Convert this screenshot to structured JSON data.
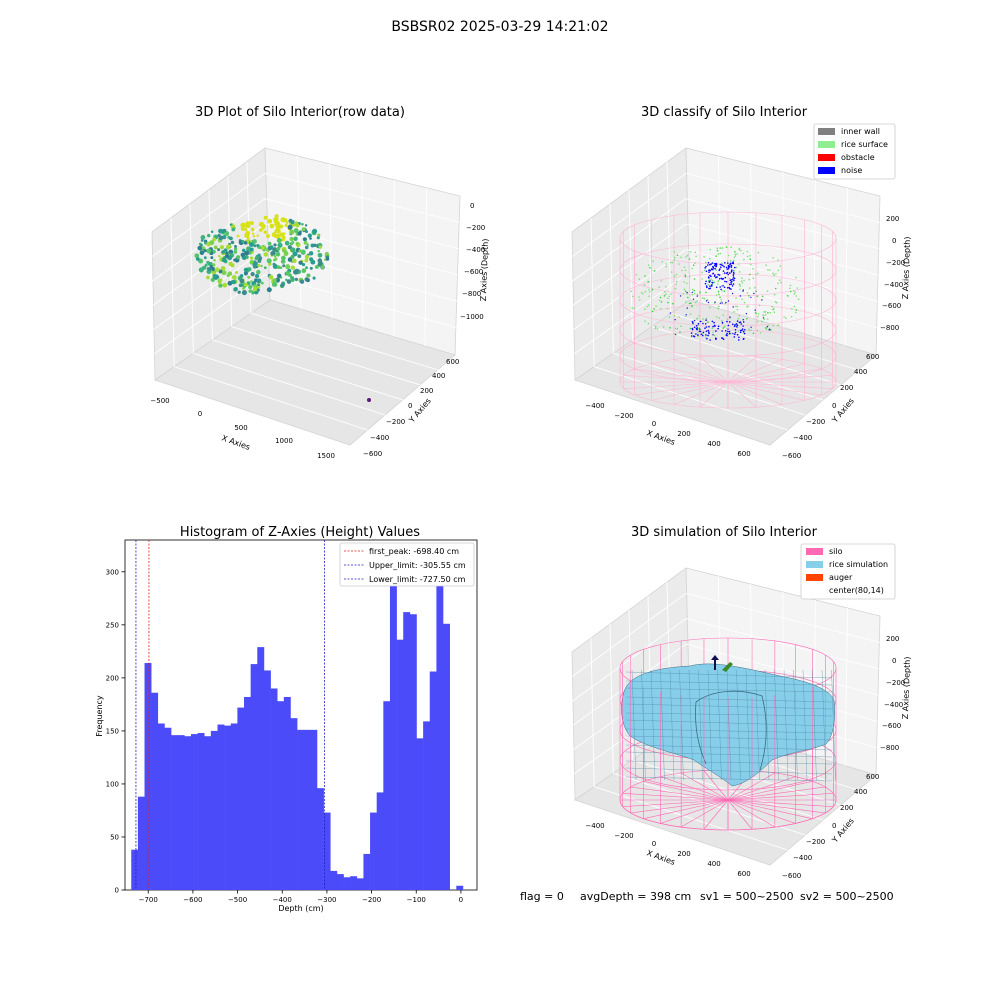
{
  "figure_title": "BSBSR02 2025-03-29 14:21:02",
  "colors": {
    "hist_bar": "#4b4bfa",
    "first_peak": "#e02020",
    "limit": "#2020c0",
    "inner_wall": "#808080",
    "rice_surface": "#90ee90",
    "obstacle": "#ff0000",
    "noise": "#0000ff",
    "silo": "#ff69b4",
    "rice_simulation": "#87ceeb",
    "auger": "#ff4500"
  },
  "panel_raw": {
    "title": "3D Plot of Silo Interior(row data)",
    "xlabel": "X Axies",
    "ylabel": "Y Axies",
    "zlabel": "Z Axies (Depth)",
    "x_ticks": [
      "−500",
      "0",
      "500",
      "1000",
      "1500"
    ],
    "y_ticks": [
      "−600",
      "−400",
      "−200",
      "0",
      "200",
      "400",
      "600"
    ],
    "z_ticks": [
      "0",
      "−200",
      "−400",
      "−600",
      "−800",
      "−1000"
    ]
  },
  "panel_classify": {
    "title": "3D classify of Silo Interior",
    "xlabel": "X Axies",
    "ylabel": "Y Axies",
    "zlabel": "Z Axies (Depth)",
    "x_ticks": [
      "−400",
      "−200",
      "0",
      "200",
      "400",
      "600"
    ],
    "y_ticks": [
      "−600",
      "−400",
      "−200",
      "0",
      "200",
      "400",
      "600"
    ],
    "z_ticks": [
      "200",
      "0",
      "−200",
      "−400",
      "−600",
      "−800"
    ],
    "legend": [
      "inner wall",
      "rice surface",
      "obstacle",
      "noise"
    ]
  },
  "panel_sim": {
    "title": "3D simulation of Silo Interior",
    "xlabel": "X Axies",
    "ylabel": "Y Axies",
    "zlabel": "Z Axies (Depth)",
    "x_ticks": [
      "−400",
      "−200",
      "0",
      "200",
      "400",
      "600"
    ],
    "y_ticks": [
      "−600",
      "−400",
      "−200",
      "0",
      "200",
      "400",
      "600"
    ],
    "z_ticks": [
      "200",
      "0",
      "−200",
      "−400",
      "−600",
      "−800"
    ],
    "legend": [
      "silo",
      "rice simulation",
      "auger",
      "center(80,14)"
    ]
  },
  "status_line": {
    "flag": "flag = 0",
    "avg_depth": "avgDepth = 398 cm",
    "sv1": "sv1 = 500~2500",
    "sv2": "sv2 = 500~2500"
  },
  "chart_data": {
    "type": "bar",
    "title": "Histogram of Z-Axies (Height) Values",
    "xlabel": "Depth (cm)",
    "ylabel": "Frequency",
    "xlim": [
      -752,
      36
    ],
    "ylim": [
      0,
      330
    ],
    "x_ticks": [
      -700,
      -600,
      -500,
      -400,
      -300,
      -200,
      -100,
      0
    ],
    "y_ticks": [
      0,
      50,
      100,
      150,
      200,
      250,
      300
    ],
    "bin_start": -738,
    "bin_width": 14.85,
    "values": [
      38,
      88,
      214,
      186,
      157,
      153,
      146,
      146,
      145,
      147,
      148,
      145,
      150,
      156,
      155,
      157,
      172,
      182,
      213,
      229,
      207,
      190,
      178,
      182,
      162,
      151,
      151,
      151,
      96,
      73,
      18,
      15,
      12,
      13,
      11,
      34,
      73,
      92,
      178,
      287,
      236,
      262,
      260,
      143,
      159,
      206,
      315,
      251,
      0,
      4
    ],
    "lines": [
      {
        "label": "first_peak: -698.40 cm",
        "x": -698.4,
        "color": "red"
      },
      {
        "label": "Upper_limit: -305.55 cm",
        "x": -305.55,
        "color": "blue"
      },
      {
        "label": "Lower_limit: -727.50 cm",
        "x": -727.5,
        "color": "blue"
      }
    ]
  }
}
